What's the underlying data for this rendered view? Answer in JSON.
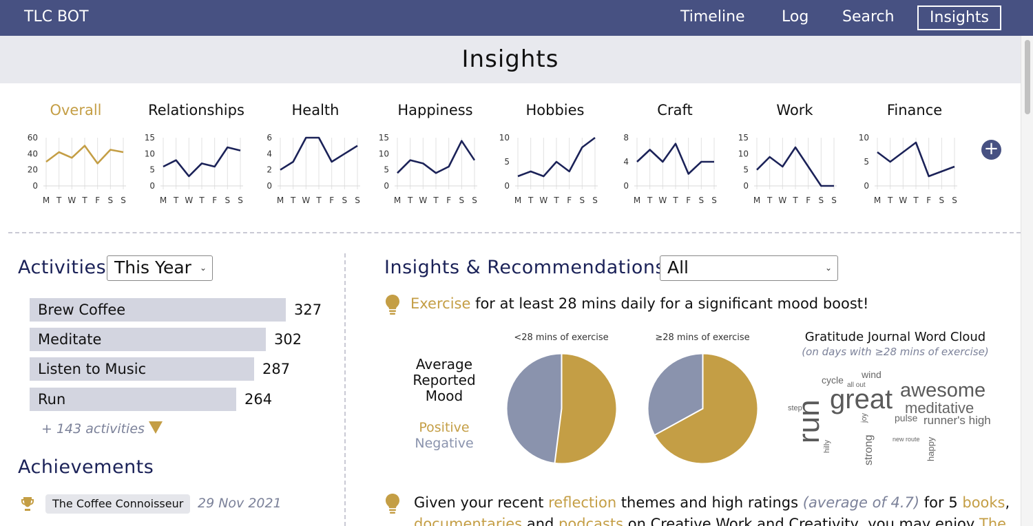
{
  "app": {
    "brand": "TLC BOT"
  },
  "nav": [
    {
      "label": "Timeline",
      "active": false
    },
    {
      "label": "Log",
      "active": false
    },
    {
      "label": "Search",
      "active": false
    },
    {
      "label": "Insights",
      "active": true
    }
  ],
  "page_title": "Insights",
  "colors": {
    "navy": "#1b2258",
    "gold": "#c49e45",
    "slate": "#8a93ad",
    "topbar": "#475182"
  },
  "categories": [
    {
      "name": "Overall",
      "active": true,
      "ymax": 60,
      "yticks": [
        "60",
        "40",
        "20",
        "0"
      ],
      "values": [
        30,
        42,
        35,
        50,
        28,
        45,
        42
      ]
    },
    {
      "name": "Relationships",
      "active": false,
      "ymax": 15,
      "yticks": [
        "15",
        "10",
        "5",
        "0"
      ],
      "values": [
        6,
        8,
        3,
        7,
        6,
        12,
        11
      ]
    },
    {
      "name": "Health",
      "active": false,
      "ymax": 6,
      "yticks": [
        "6",
        "4",
        "2",
        "0"
      ],
      "values": [
        2,
        3,
        6,
        6,
        3,
        4,
        5
      ]
    },
    {
      "name": "Happiness",
      "active": false,
      "ymax": 15,
      "yticks": [
        "15",
        "10",
        "5",
        "0"
      ],
      "values": [
        4,
        8,
        7,
        4,
        6,
        14,
        8
      ]
    },
    {
      "name": "Hobbies",
      "active": false,
      "ymax": 10,
      "yticks": [
        "10",
        "5",
        "0"
      ],
      "values": [
        2,
        3,
        2,
        5,
        3,
        8,
        10
      ]
    },
    {
      "name": "Craft",
      "active": false,
      "ymax": 8,
      "yticks": [
        "8",
        "4",
        "0"
      ],
      "values": [
        4,
        6,
        4,
        7,
        2,
        4,
        4
      ]
    },
    {
      "name": "Work",
      "active": false,
      "ymax": 15,
      "yticks": [
        "15",
        "10",
        "5",
        "0"
      ],
      "values": [
        5,
        9,
        6,
        12,
        6,
        0,
        0
      ]
    },
    {
      "name": "Finance",
      "active": false,
      "ymax": 10,
      "yticks": [
        "10",
        "5",
        "0"
      ],
      "values": [
        7,
        5,
        7,
        9,
        2,
        3,
        4
      ]
    }
  ],
  "days": [
    "M",
    "T",
    "W",
    "T",
    "F",
    "S",
    "S"
  ],
  "activities": {
    "title": "Activities",
    "period": "This Year",
    "items": [
      {
        "label": "Brew Coffee",
        "count": 327
      },
      {
        "label": "Meditate",
        "count": 302
      },
      {
        "label": "Listen to Music",
        "count": 287
      },
      {
        "label": "Run",
        "count": 264
      }
    ],
    "more": "+ 143 activities"
  },
  "achievements": {
    "title": "Achievements",
    "items": [
      {
        "name": "The Coffee Connoisseur",
        "date": "29 Nov 2021"
      }
    ]
  },
  "insights": {
    "title": "Insights & Recommendations",
    "filter": "All",
    "first": {
      "keyword": "Exercise",
      "text": " for at least 28 mins daily for a significant mood boost!"
    },
    "mood": {
      "title": "Average Reported Mood",
      "legend_positive": "Positive",
      "legend_negative": "Negative",
      "pies": [
        {
          "caption": "<28 mins of exercise",
          "positive_fraction": 0.52
        },
        {
          "caption": "≥28 mins of exercise",
          "positive_fraction": 0.67
        }
      ]
    },
    "wordcloud": {
      "title": "Gratitude Journal Word Cloud",
      "subtitle": "(on days with ≥28 mins of exercise)",
      "words": [
        "great",
        "awesome",
        "meditative",
        "run",
        "cycle",
        "wind",
        "all out",
        "step",
        "pulse",
        "runner's high",
        "joy",
        "strong",
        "hilly",
        "new route",
        "happy"
      ]
    },
    "second": {
      "line1_pre": "Given your recent ",
      "line1_kw1": "reflection",
      "line1_mid": " themes and high ratings ",
      "line1_avg": "(average of 4.7)",
      "line1_post": " for 5 ",
      "line1_kw2": "books",
      "line1_end": ",",
      "line2_kw1": "documentaries",
      "line2_and": " and ",
      "line2_kw2": "podcasts",
      "line2_post": " on Creative Work and Creativity, you may enjoy ",
      "line2_kw3": "The"
    }
  }
}
